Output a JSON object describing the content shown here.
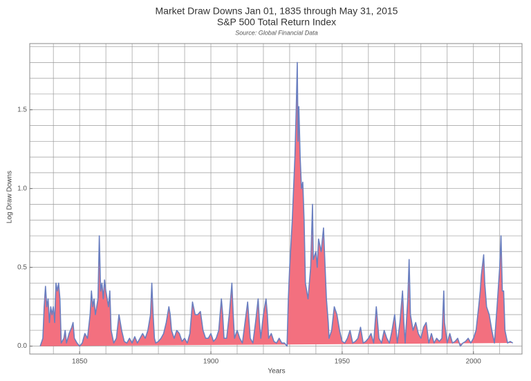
{
  "chart_data": {
    "type": "area",
    "title": "Market Draw Downs Jan 01, 1835 through May 31, 2015",
    "subtitle": "S&P 500 Total Return Index",
    "source": "Source: Global Financial Data",
    "x_label": "Years",
    "y_label": "Log Draw Downs",
    "xlim": [
      1831,
      2018.5
    ],
    "ylim": [
      -0.05,
      1.92
    ],
    "xticks": [
      1850,
      1900,
      1950,
      2000
    ],
    "yticks": [
      {
        "value": 0,
        "label": "0.0"
      },
      {
        "value": 0.5,
        "label": "0.5"
      },
      {
        "value": 1,
        "label": "1.0"
      },
      {
        "value": 1.5,
        "label": "1.5"
      }
    ],
    "xgrid": [
      1840,
      1850,
      1860,
      1870,
      1880,
      1890,
      1900,
      1910,
      1920,
      1930,
      1940,
      1950,
      1960,
      1970,
      1980,
      1990,
      2000,
      2010
    ],
    "ygrid": [
      0,
      0.1,
      0.2,
      0.3,
      0.4,
      0.5,
      0.6,
      0.7,
      0.8,
      0.9,
      1,
      1.1,
      1.2,
      1.3,
      1.4,
      1.5,
      1.6,
      1.7,
      1.8,
      1.9
    ],
    "grid": true,
    "fill_color": "#f3707f",
    "line_color": "#6a7fc0",
    "x": [
      1835,
      1836,
      1836.5,
      1837,
      1837.5,
      1838,
      1838.5,
      1839,
      1839.5,
      1840,
      1840.5,
      1841,
      1841.5,
      1842,
      1842.5,
      1843,
      1844,
      1844.5,
      1845,
      1846,
      1847,
      1847.5,
      1848,
      1849,
      1850,
      1851,
      1852,
      1853,
      1854,
      1854.5,
      1855,
      1855.5,
      1856,
      1857,
      1857.5,
      1858,
      1858.5,
      1859,
      1859.5,
      1860,
      1861,
      1861.5,
      1862,
      1863,
      1864,
      1865,
      1865.5,
      1866,
      1867,
      1868,
      1869,
      1870,
      1871,
      1872,
      1873,
      1874,
      1875,
      1876,
      1877,
      1877.5,
      1878,
      1878.5,
      1879,
      1880,
      1881,
      1882,
      1883,
      1884,
      1884.5,
      1885,
      1886,
      1887,
      1888,
      1889,
      1890,
      1891,
      1892,
      1893,
      1894,
      1895,
      1896,
      1897,
      1898,
      1899,
      1900,
      1901,
      1902,
      1903,
      1904,
      1904.5,
      1905,
      1906,
      1907,
      1908,
      1908.5,
      1909,
      1910,
      1911,
      1912,
      1913,
      1914,
      1915,
      1916,
      1917,
      1918,
      1918.5,
      1919,
      1920,
      1921,
      1921.5,
      1922,
      1923,
      1924,
      1925,
      1926,
      1927,
      1928,
      1929,
      1929.5,
      1930,
      1931,
      1932,
      1932.5,
      1932.9,
      1933.2,
      1933.5,
      1934,
      1934.5,
      1935,
      1935.5,
      1936,
      1937,
      1938,
      1938.7,
      1939,
      1940,
      1940.5,
      1941,
      1942,
      1942.9,
      1943.5,
      1944,
      1944.7,
      1945,
      1946,
      1947,
      1948,
      1949,
      1950,
      1951,
      1952,
      1953,
      1954,
      1955,
      1956,
      1957,
      1958,
      1959,
      1960,
      1961,
      1962,
      1963,
      1964,
      1965,
      1966,
      1967,
      1968,
      1969,
      1970,
      1971,
      1972,
      1973,
      1973.5,
      1974,
      1975,
      1975.5,
      1976,
      1977,
      1978,
      1979,
      1980,
      1981,
      1982,
      1983,
      1984,
      1985,
      1986,
      1987,
      1988,
      1988.7,
      1989,
      1990,
      1991,
      1992,
      1993,
      1994,
      1995,
      1996,
      1997,
      1998,
      1999,
      2000,
      2001,
      2002,
      2002.6,
      2003,
      2003.9,
      2004.3,
      2005,
      2006,
      2007,
      2008,
      2009,
      2010,
      2010.5,
      2011,
      2011.5,
      2012,
      2013,
      2014,
      2015
    ],
    "values": [
      0,
      0.05,
      0.25,
      0.38,
      0.25,
      0.3,
      0.15,
      0.25,
      0.2,
      0.25,
      0.15,
      0.4,
      0.35,
      0.4,
      0.3,
      0.02,
      0.05,
      0.1,
      0.02,
      0.08,
      0.12,
      0.15,
      0.05,
      0.02,
      0,
      0.02,
      0.08,
      0.05,
      0.2,
      0.35,
      0.25,
      0.3,
      0.2,
      0.3,
      0.7,
      0.35,
      0.4,
      0.3,
      0.42,
      0.35,
      0.25,
      0.35,
      0.1,
      0.02,
      0.05,
      0.2,
      0.15,
      0.1,
      0.03,
      0.02,
      0.05,
      0.02,
      0.06,
      0.02,
      0.05,
      0.08,
      0.05,
      0.1,
      0.2,
      0.4,
      0.2,
      0.05,
      0.02,
      0.03,
      0.05,
      0.08,
      0.15,
      0.25,
      0.2,
      0.1,
      0.05,
      0.1,
      0.08,
      0.03,
      0.05,
      0.02,
      0.08,
      0.28,
      0.2,
      0.2,
      0.22,
      0.1,
      0.05,
      0.05,
      0.08,
      0.03,
      0.05,
      0.1,
      0.3,
      0.2,
      0.05,
      0.05,
      0.2,
      0.4,
      0.2,
      0.05,
      0.1,
      0.05,
      0.02,
      0.15,
      0.28,
      0.05,
      0.02,
      0.15,
      0.3,
      0.15,
      0.05,
      0.2,
      0.3,
      0.2,
      0.05,
      0.08,
      0.03,
      0.02,
      0.05,
      0.02,
      0.02,
      0,
      0.3,
      0.5,
      0.8,
      1.2,
      1.5,
      1.8,
      1.3,
      1.52,
      1.2,
      1,
      1.04,
      0.8,
      0.4,
      0.3,
      0.5,
      0.9,
      0.55,
      0.6,
      0.5,
      0.68,
      0.6,
      0.75,
      0.5,
      0.3,
      0.15,
      0.05,
      0.1,
      0.25,
      0.2,
      0.1,
      0.03,
      0.02,
      0.05,
      0.1,
      0.02,
      0.03,
      0.05,
      0.12,
      0.02,
      0.03,
      0.05,
      0.08,
      0.02,
      0.25,
      0.05,
      0.02,
      0.1,
      0.05,
      0.02,
      0.1,
      0.2,
      0.02,
      0.15,
      0.35,
      0.15,
      0.02,
      0.3,
      0.55,
      0.2,
      0.1,
      0.15,
      0.08,
      0.05,
      0.12,
      0.15,
      0.02,
      0.08,
      0.02,
      0.05,
      0.03,
      0.05,
      0.35,
      0.15,
      0.02,
      0.08,
      0.02,
      0.03,
      0.05,
      0,
      0.02,
      0.03,
      0.05,
      0.02,
      0.05,
      0.1,
      0.25,
      0.35,
      0.45,
      0.58,
      0.4,
      0.25,
      0.2,
      0.1,
      0.02,
      0.25,
      0.5,
      0.7,
      0.35,
      0.35,
      0.1,
      0.02,
      0.03,
      0.02
    ]
  }
}
